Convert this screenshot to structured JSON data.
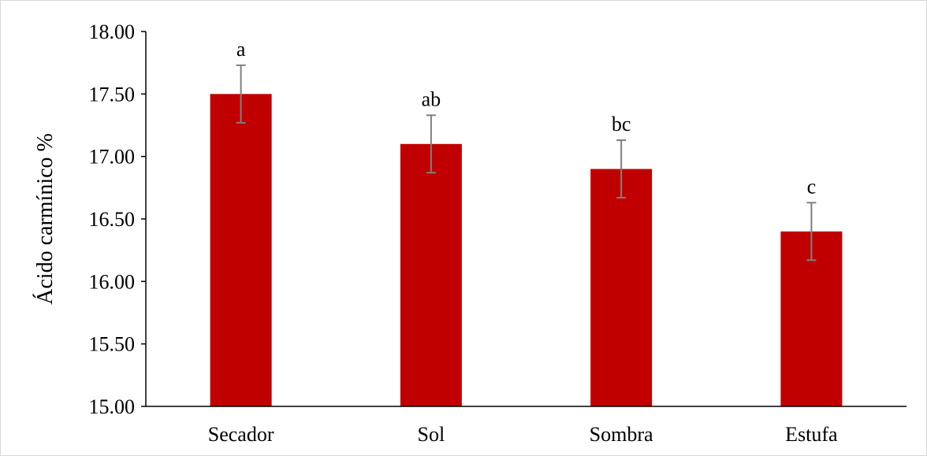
{
  "chart_data": {
    "type": "bar",
    "title": "",
    "xlabel": "",
    "ylabel": "Ácido carmínico %",
    "categories": [
      "Secador",
      "Sol",
      "Sombra",
      "Estufa"
    ],
    "values": [
      17.5,
      17.1,
      16.9,
      16.4
    ],
    "errors": [
      0.23,
      0.23,
      0.23,
      0.23
    ],
    "significance_labels": [
      "a",
      "ab",
      "bc",
      "c"
    ],
    "ylim": [
      15.0,
      18.0
    ],
    "yticks": [
      15.0,
      15.5,
      16.0,
      16.5,
      17.0,
      17.5,
      18.0
    ],
    "ytick_labels": [
      "15.00",
      "15.50",
      "16.00",
      "16.50",
      "17.00",
      "17.50",
      "18.00"
    ],
    "grid": false,
    "legend": "none",
    "colors": {
      "bar": "#c00000",
      "error_bar": "#7f7f7f",
      "axis": "#000000",
      "border": "#d9d9d9"
    }
  }
}
